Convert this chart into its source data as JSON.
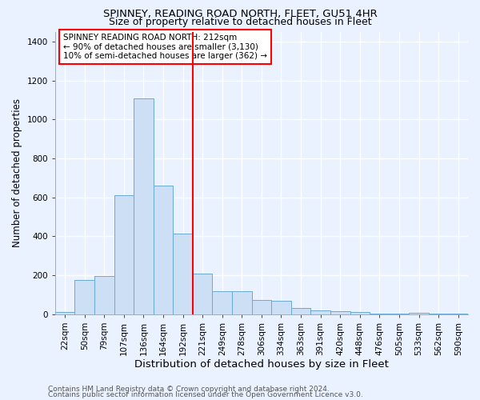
{
  "title1": "SPINNEY, READING ROAD NORTH, FLEET, GU51 4HR",
  "title2": "Size of property relative to detached houses in Fleet",
  "xlabel": "Distribution of detached houses by size in Fleet",
  "ylabel": "Number of detached properties",
  "categories": [
    "22sqm",
    "50sqm",
    "79sqm",
    "107sqm",
    "136sqm",
    "164sqm",
    "192sqm",
    "221sqm",
    "249sqm",
    "278sqm",
    "306sqm",
    "334sqm",
    "363sqm",
    "391sqm",
    "420sqm",
    "448sqm",
    "476sqm",
    "505sqm",
    "533sqm",
    "562sqm",
    "590sqm"
  ],
  "values": [
    10,
    175,
    195,
    610,
    1110,
    660,
    415,
    210,
    120,
    120,
    75,
    70,
    30,
    20,
    15,
    10,
    5,
    4,
    8,
    3,
    2
  ],
  "bar_color": "#ccdff5",
  "bar_edge_color": "#6aaad4",
  "red_line_index": 7,
  "annotation_text": "SPINNEY READING ROAD NORTH: 212sqm\n← 90% of detached houses are smaller (3,130)\n10% of semi-detached houses are larger (362) →",
  "ylim": [
    0,
    1450
  ],
  "yticks": [
    0,
    200,
    400,
    600,
    800,
    1000,
    1200,
    1400
  ],
  "footer1": "Contains HM Land Registry data © Crown copyright and database right 2024.",
  "footer2": "Contains public sector information licensed under the Open Government Licence v3.0.",
  "bg_color": "#eaf2ff",
  "plot_bg_color": "#eaf2ff",
  "grid_color": "#ffffff",
  "title1_fontsize": 9.5,
  "title2_fontsize": 9,
  "xlabel_fontsize": 9.5,
  "ylabel_fontsize": 8.5,
  "tick_fontsize": 7.5,
  "annotation_fontsize": 7.5,
  "footer_fontsize": 6.5
}
